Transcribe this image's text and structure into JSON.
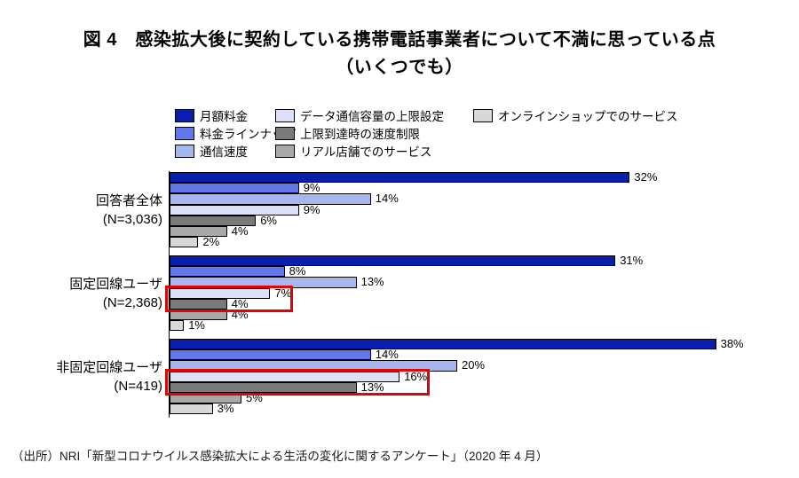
{
  "title": {
    "line1": "図 4　感染拡大後に契約している携帯電話事業者について不満に思っている点",
    "line2": "（いくつでも）"
  },
  "source_note": "（出所）NRI「新型コロナウイルス感染拡大による生活の変化に関するアンケート」（2020 年 4 月）",
  "chart_data": {
    "type": "bar",
    "orientation": "horizontal",
    "value_unit": "%",
    "xlim": [
      0,
      40
    ],
    "grid": false,
    "legend_position": "top",
    "series": [
      {
        "name": "月額料金",
        "color": "#0a1eae"
      },
      {
        "name": "料金ラインナップ",
        "color": "#6377e8"
      },
      {
        "name": "通信速度",
        "color": "#a8b6f0"
      },
      {
        "name": "データ通信容量の上限設定",
        "color": "#dce1f8"
      },
      {
        "name": "上限到達時の速度制限",
        "color": "#7a7a7a"
      },
      {
        "name": "リアル店舗でのサービス",
        "color": "#a9a9a9"
      },
      {
        "name": "オンラインショップでのサービス",
        "color": "#d8d8d8"
      }
    ],
    "legend_columns": [
      [
        0,
        1,
        2
      ],
      [
        3,
        4,
        5
      ],
      [
        6
      ]
    ],
    "groups": [
      {
        "label": "回答者全体",
        "n_label": "(N=3,036)",
        "values": [
          32,
          9,
          14,
          9,
          6,
          4,
          2
        ]
      },
      {
        "label": "固定回線ユーザ",
        "n_label": "(N=2,368)",
        "values": [
          31,
          8,
          13,
          7,
          4,
          4,
          1
        ]
      },
      {
        "label": "非固定回線ユーザ",
        "n_label": "(N=419)",
        "values": [
          38,
          14,
          20,
          16,
          13,
          5,
          3
        ]
      }
    ],
    "highlights": [
      {
        "group_index": 1,
        "series_from": 3,
        "series_to": 4,
        "right_value": 8.6,
        "color": "#e60000"
      },
      {
        "group_index": 2,
        "series_from": 3,
        "series_to": 4,
        "right_value": 18.1,
        "color": "#e60000"
      }
    ]
  }
}
